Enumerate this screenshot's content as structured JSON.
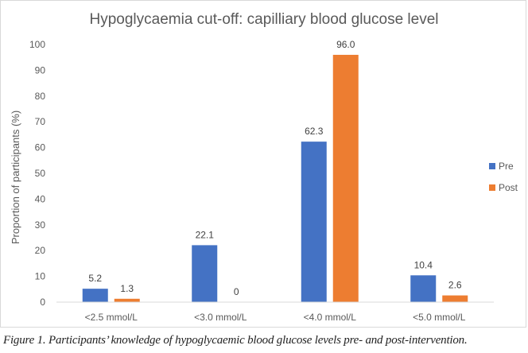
{
  "chart_data": {
    "type": "bar",
    "title": "Hypoglycaemia cut-off: capilliary blood glucose level",
    "xlabel": "",
    "ylabel": "Proportion of participants (%)",
    "categories": [
      "<2.5 mmol/L",
      "<3.0 mmol/L",
      "<4.0 mmol/L",
      "<5.0 mmol/L"
    ],
    "series": [
      {
        "name": "Pre",
        "color": "#4472C4",
        "values": [
          5.2,
          22.1,
          62.3,
          10.4
        ],
        "labels": [
          "5.2",
          "22.1",
          "62.3",
          "10.4"
        ]
      },
      {
        "name": "Post",
        "color": "#ED7D31",
        "values": [
          1.3,
          0,
          96.0,
          2.6
        ],
        "labels": [
          "1.3",
          "0",
          "96.0",
          "2.6"
        ]
      }
    ],
    "ylim": [
      0,
      100
    ],
    "yticks": [
      "0",
      "10",
      "20",
      "30",
      "40",
      "50",
      "60",
      "70",
      "80",
      "90",
      "100"
    ],
    "grid": false,
    "legend": "right"
  },
  "caption": "Figure 1. Participants’ knowledge of hypoglycaemic blood glucose levels pre- and post-intervention."
}
